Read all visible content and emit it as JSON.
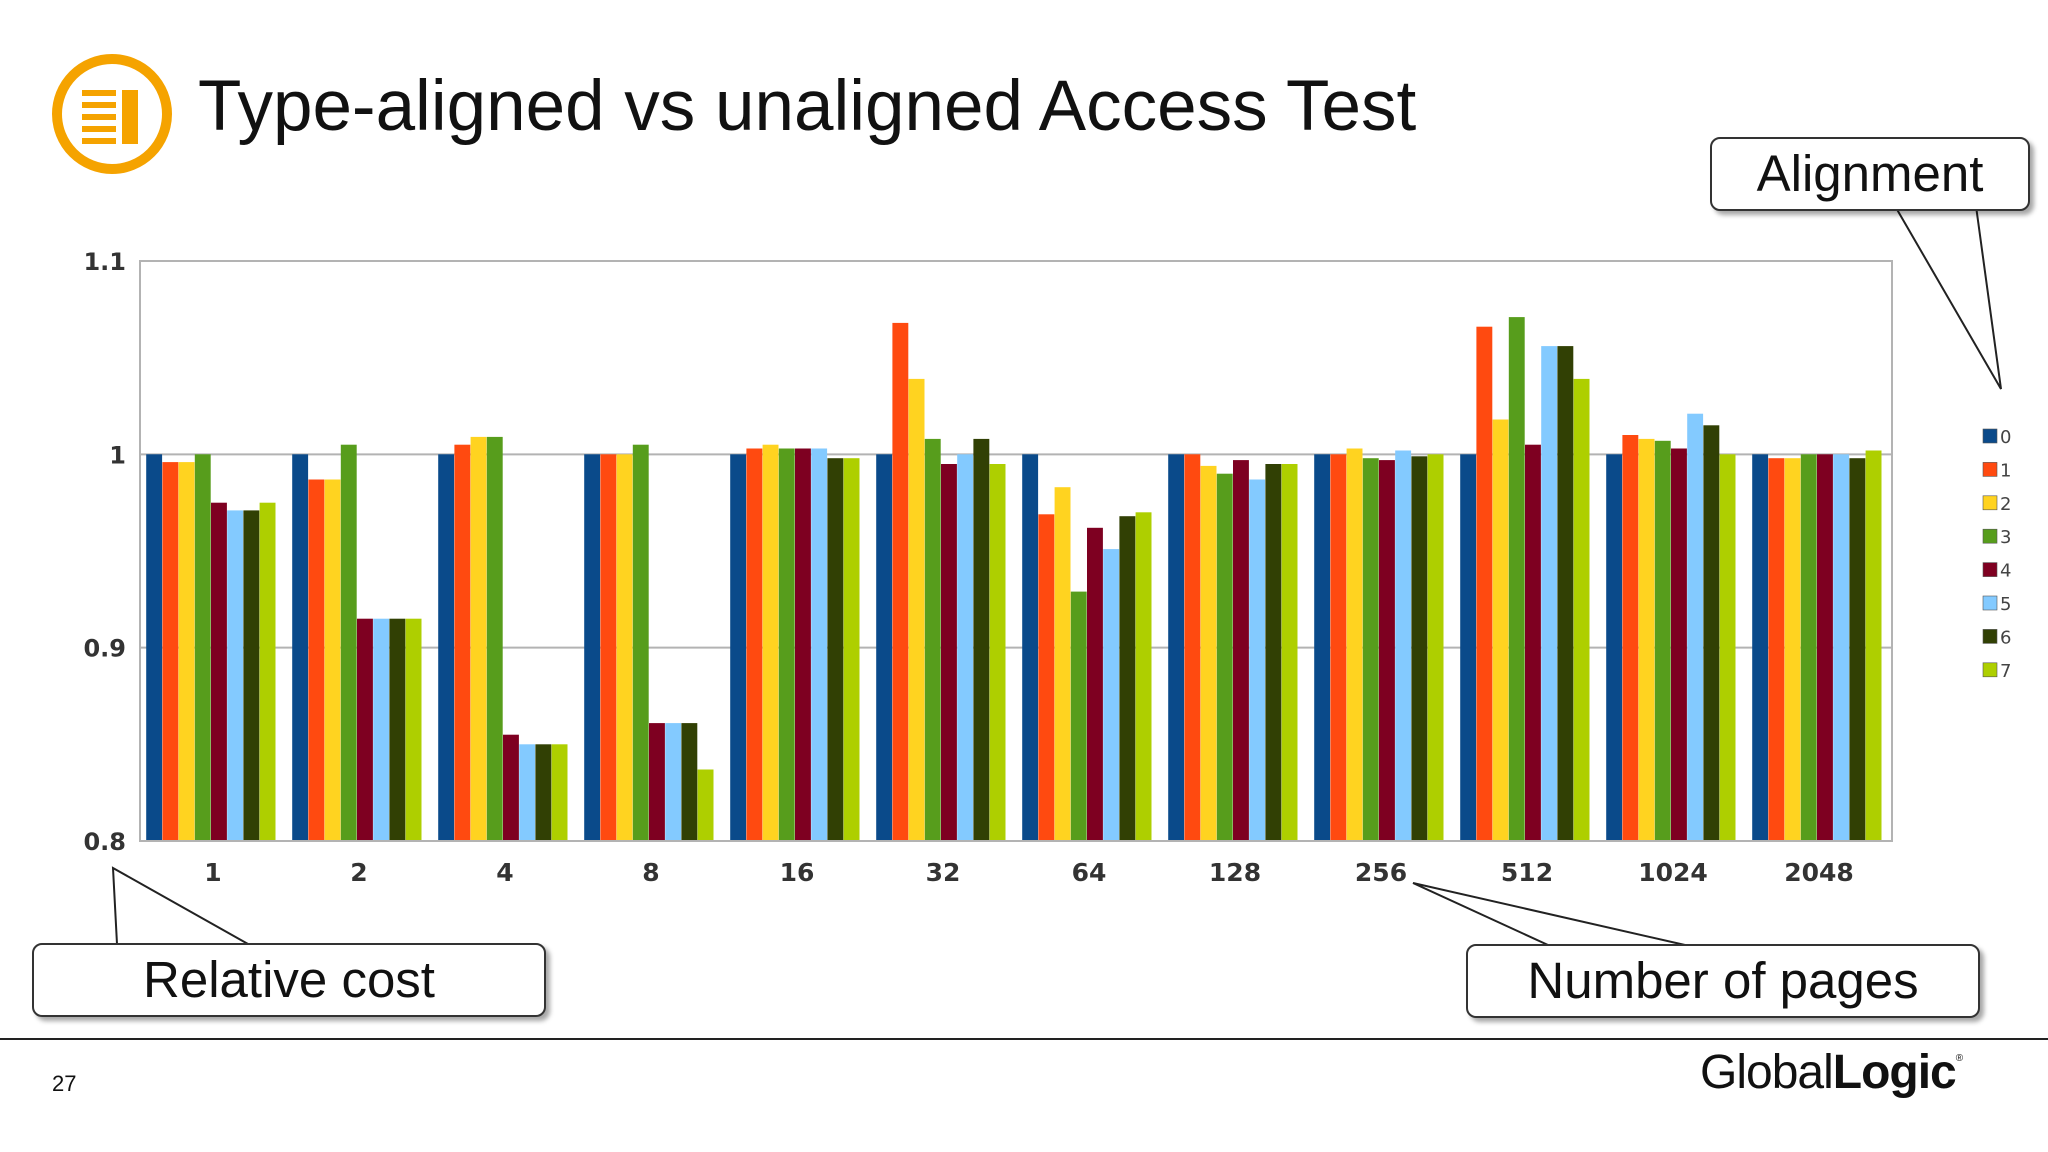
{
  "slide": {
    "title": "Type-aligned vs unaligned Access Test",
    "page_number": "27",
    "brand": {
      "light": "Global",
      "bold": "Logic",
      "mark": "®"
    },
    "callouts": {
      "alignment": "Alignment",
      "relative_cost": "Relative cost",
      "number_of_pages": "Number of pages"
    },
    "logo_icon": "document-list-icon",
    "accent_color": "#F5A300"
  },
  "chart_data": {
    "type": "bar",
    "title": "",
    "xlabel": "",
    "ylabel": "",
    "ylim": [
      0.8,
      1.1
    ],
    "yticks": [
      "0.8",
      "0.9",
      "1",
      "1.1"
    ],
    "grid": true,
    "legend_position": "right",
    "categories": [
      "1",
      "2",
      "4",
      "8",
      "16",
      "32",
      "64",
      "128",
      "256",
      "512",
      "1024",
      "2048"
    ],
    "series": [
      {
        "name": "0",
        "color": "#0A4A8A",
        "values": [
          1.0,
          1.0,
          1.0,
          1.0,
          1.0,
          1.0,
          1.0,
          1.0,
          1.0,
          1.0,
          1.0,
          1.0
        ]
      },
      {
        "name": "1",
        "color": "#FF4A10",
        "values": [
          0.996,
          0.987,
          1.005,
          1.0,
          1.003,
          1.068,
          0.969,
          1.0,
          1.0,
          1.066,
          1.01,
          0.998
        ]
      },
      {
        "name": "2",
        "color": "#FFD320",
        "values": [
          0.996,
          0.987,
          1.009,
          1.0,
          1.005,
          1.039,
          0.983,
          0.994,
          1.003,
          1.018,
          1.008,
          0.998
        ]
      },
      {
        "name": "3",
        "color": "#579D1C",
        "values": [
          1.0,
          1.005,
          1.009,
          1.005,
          1.003,
          1.008,
          0.929,
          0.99,
          0.998,
          1.071,
          1.007,
          1.0
        ]
      },
      {
        "name": "4",
        "color": "#7E0021",
        "values": [
          0.975,
          0.915,
          0.855,
          0.861,
          1.003,
          0.995,
          0.962,
          0.997,
          0.997,
          1.005,
          1.003,
          1.0
        ]
      },
      {
        "name": "5",
        "color": "#83CAFF",
        "values": [
          0.971,
          0.915,
          0.85,
          0.861,
          1.003,
          1.0,
          0.951,
          0.987,
          1.002,
          1.056,
          1.021,
          1.0
        ]
      },
      {
        "name": "6",
        "color": "#314004",
        "values": [
          0.971,
          0.915,
          0.85,
          0.861,
          0.998,
          1.008,
          0.968,
          0.995,
          0.999,
          1.056,
          1.015,
          0.998
        ]
      },
      {
        "name": "7",
        "color": "#AECF00",
        "values": [
          0.975,
          0.915,
          0.85,
          0.837,
          0.998,
          0.995,
          0.97,
          0.995,
          1.0,
          1.039,
          1.0,
          1.002
        ]
      }
    ]
  }
}
